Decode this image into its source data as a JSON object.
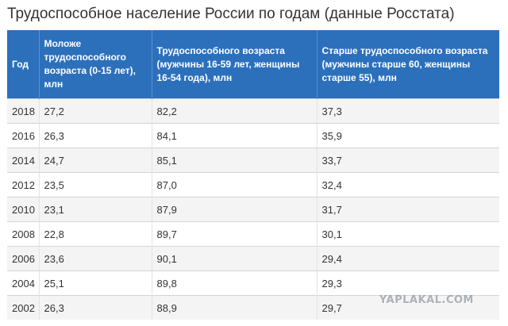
{
  "title": "Трудоспособное население России по годам (данные Росстата)",
  "table": {
    "headers": [
      "Год",
      "Моложе трудоспособного возраста (0-15 лет), млн",
      "Трудоспособного возраста (мужчины 16-59 лет, женщины 16-54 года), млн",
      "Старше трудоспособного возраста (мужчины старше 60, женщины старше 55), млн"
    ],
    "rows": [
      [
        "2018",
        "27,2",
        "82,2",
        "37,3"
      ],
      [
        "2016",
        "26,3",
        "84,1",
        "35,9"
      ],
      [
        "2014",
        "24,7",
        "85,1",
        "33,7"
      ],
      [
        "2012",
        "23,5",
        "87,0",
        "32,4"
      ],
      [
        "2010",
        "23,1",
        "87,9",
        "31,7"
      ],
      [
        "2008",
        "22,8",
        "89,7",
        "30,1"
      ],
      [
        "2006",
        "23,6",
        "90,1",
        "29,4"
      ],
      [
        "2004",
        "25,1",
        "89,8",
        "29,3"
      ],
      [
        "2002",
        "26,3",
        "88,9",
        "29,7"
      ]
    ]
  },
  "watermark": "YAPLAKAL.COM"
}
